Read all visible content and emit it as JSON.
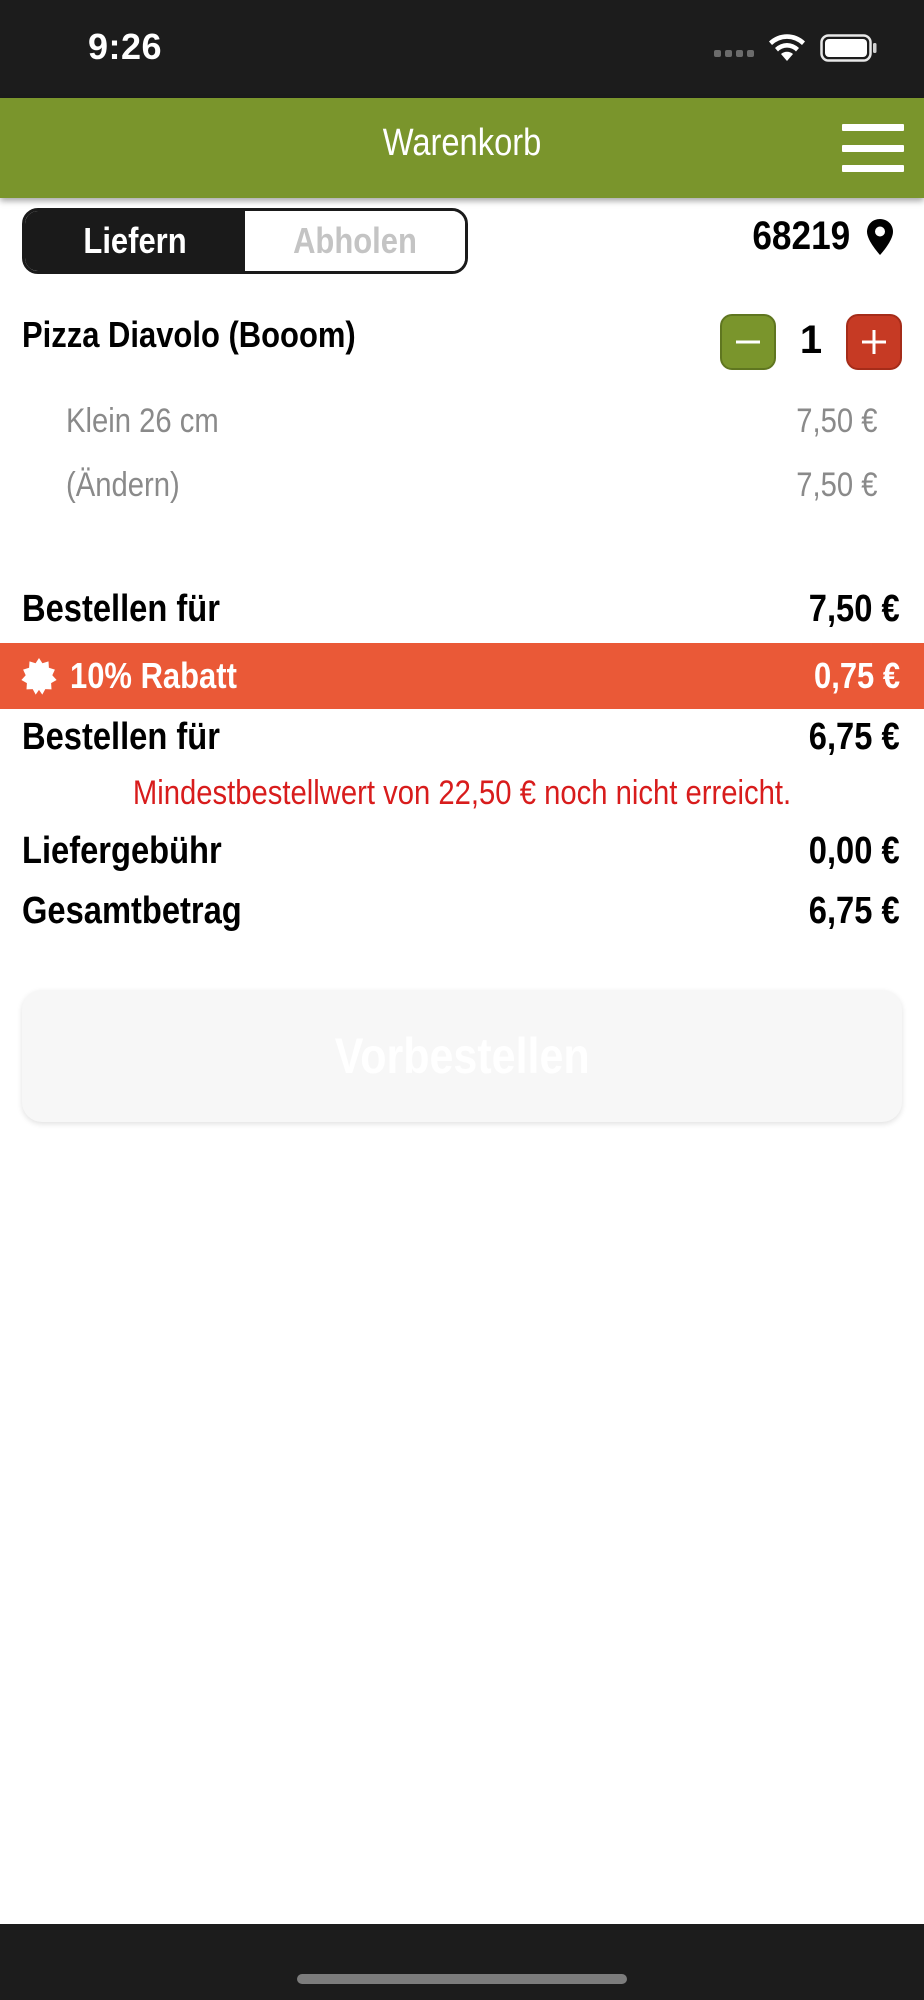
{
  "status_bar": {
    "time": "9:26"
  },
  "header": {
    "title": "Warenkorb"
  },
  "mode_toggle": {
    "deliver": "Liefern",
    "pickup": "Abholen",
    "selected": "Liefern"
  },
  "location": {
    "zip": "68219"
  },
  "cart": {
    "item": {
      "name": "Pizza Diavolo (Booom)",
      "quantity": "1",
      "options": [
        {
          "label": "Klein 26 cm",
          "price": "7,50 €"
        },
        {
          "label": "(Ändern)",
          "price": "7,50 €"
        }
      ]
    }
  },
  "summary": {
    "subtotal_label": "Bestellen für",
    "subtotal_value": "7,50 €",
    "discount_label": "10% Rabatt",
    "discount_value": "0,75 €",
    "discounted_label": "Bestellen für",
    "discounted_value": "6,75 €",
    "min_order_warning": "Mindestbestellwert von 22,50 € noch nicht erreicht.",
    "delivery_fee_label": "Liefergebühr",
    "delivery_fee_value": "0,00 €",
    "total_label": "Gesamtbetrag",
    "total_value": "6,75 €"
  },
  "actions": {
    "preorder_label": "Vorbestellen"
  },
  "colors": {
    "header": "#7a952c",
    "discount": "#ea5937",
    "plus": "#c63a24",
    "warning": "#d81c1c"
  },
  "icons": {
    "menu": "hamburger-icon",
    "location": "map-pin-icon",
    "minus": "minus-icon",
    "plus": "plus-icon",
    "discount": "badge-icon"
  }
}
